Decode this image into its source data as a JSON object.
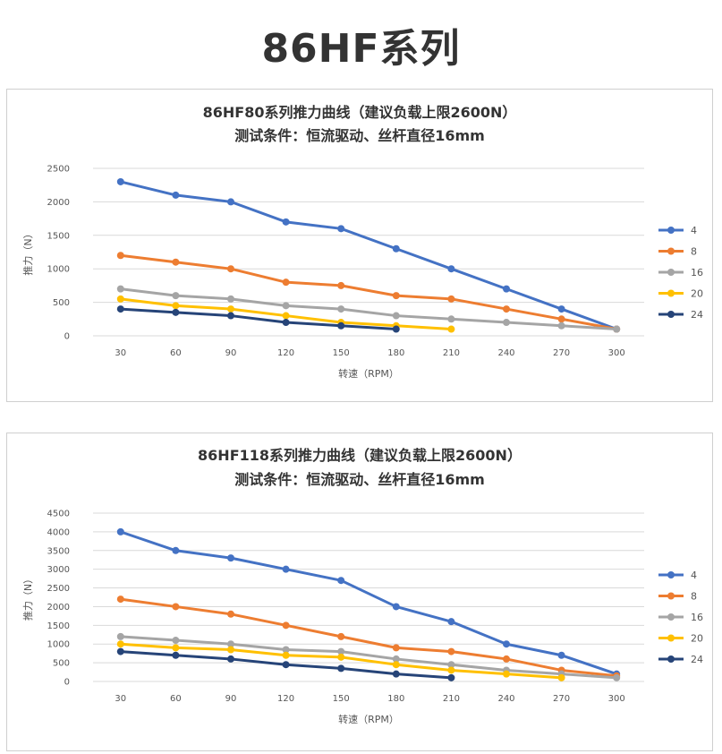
{
  "page": {
    "title": "86HF系列"
  },
  "chart_data": [
    {
      "type": "line",
      "title_line1": "86HF80系列推力曲线（建议负载上限2600N）",
      "title_line2": "测试条件：恒流驱动、丝杆直径16mm",
      "xlabel": "转速（RPM）",
      "ylabel": "推力（N）",
      "ylim": [
        0,
        2500
      ],
      "yticks": [
        0,
        500,
        1000,
        1500,
        2000,
        2500
      ],
      "categories": [
        "30",
        "60",
        "90",
        "120",
        "150",
        "180",
        "210",
        "240",
        "270",
        "300"
      ],
      "grid": true,
      "legend_position": "right",
      "series": [
        {
          "name": "4",
          "color": "#4472c4",
          "values": [
            2300,
            2100,
            2000,
            1700,
            1600,
            1300,
            1000,
            700,
            400,
            100
          ]
        },
        {
          "name": "8",
          "color": "#ed7d31",
          "values": [
            1200,
            1100,
            1000,
            800,
            750,
            600,
            550,
            400,
            250,
            100
          ]
        },
        {
          "name": "16",
          "color": "#a5a5a5",
          "values": [
            700,
            600,
            550,
            450,
            400,
            300,
            250,
            200,
            150,
            100
          ]
        },
        {
          "name": "20",
          "color": "#ffc000",
          "values": [
            550,
            450,
            400,
            300,
            200,
            150,
            100,
            null,
            null,
            null
          ]
        },
        {
          "name": "24",
          "color": "#264478",
          "values": [
            400,
            350,
            300,
            200,
            150,
            100,
            null,
            null,
            null,
            null
          ]
        }
      ]
    },
    {
      "type": "line",
      "title_line1": "86HF118系列推力曲线（建议负载上限2600N）",
      "title_line2": "测试条件：恒流驱动、丝杆直径16mm",
      "xlabel": "转速（RPM）",
      "ylabel": "推力（N）",
      "ylim": [
        0,
        4500
      ],
      "yticks": [
        0,
        500,
        1000,
        1500,
        2000,
        2500,
        3000,
        3500,
        4000,
        4500
      ],
      "categories": [
        "30",
        "60",
        "90",
        "120",
        "150",
        "180",
        "210",
        "240",
        "270",
        "300"
      ],
      "grid": true,
      "legend_position": "right",
      "series": [
        {
          "name": "4",
          "color": "#4472c4",
          "values": [
            4000,
            3500,
            3300,
            3000,
            2700,
            2000,
            1600,
            1000,
            700,
            200
          ]
        },
        {
          "name": "8",
          "color": "#ed7d31",
          "values": [
            2200,
            2000,
            1800,
            1500,
            1200,
            900,
            800,
            600,
            300,
            150
          ]
        },
        {
          "name": "16",
          "color": "#a5a5a5",
          "values": [
            1200,
            1100,
            1000,
            850,
            800,
            600,
            450,
            300,
            200,
            100
          ]
        },
        {
          "name": "20",
          "color": "#ffc000",
          "values": [
            1000,
            900,
            850,
            700,
            650,
            450,
            300,
            200,
            100,
            null
          ]
        },
        {
          "name": "24",
          "color": "#264478",
          "values": [
            800,
            700,
            600,
            450,
            350,
            200,
            100,
            null,
            null,
            null
          ]
        }
      ]
    }
  ]
}
